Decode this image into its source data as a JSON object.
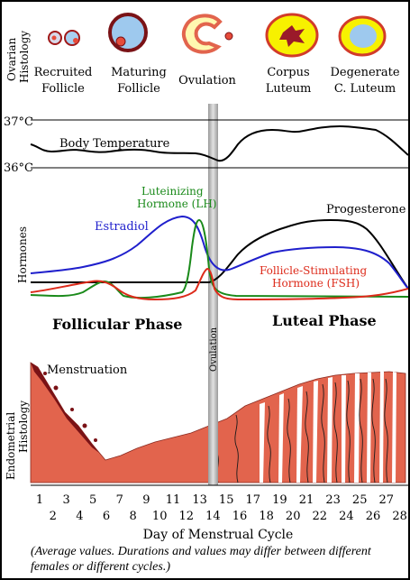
{
  "colors": {
    "estradiol": "#1f1fcc",
    "lh": "#1a8a1a",
    "fsh": "#dd2a1a",
    "progesterone": "#000000",
    "endometrium": "#e2644d",
    "menstrual_blood": "#7a1216",
    "follicle_fluid": "#9ec9ee",
    "corpus_yellow": "#f7f100"
  },
  "ovarian": {
    "side_label_1": "Ovarian",
    "side_label_2": "Histology",
    "stages": [
      {
        "line1": "Recruited",
        "line2": "Follicle"
      },
      {
        "line1": "Maturing",
        "line2": "Follicle"
      },
      {
        "line1": "Ovulation",
        "line2": ""
      },
      {
        "line1": "Corpus",
        "line2": "Luteum"
      },
      {
        "line1": "Degenerate",
        "line2": "C. Luteum"
      }
    ]
  },
  "temperature": {
    "label": "Body Temperature",
    "high_label": "37°C",
    "low_label": "36°C"
  },
  "hormones": {
    "side_label": "Hormones",
    "lh_label_1": "Luteinizing",
    "lh_label_2": "Hormone (LH)",
    "estradiol_label": "Estradiol",
    "progesterone_label": "Progesterone",
    "fsh_label_1": "Follicle-Stimulating",
    "fsh_label_2": "Hormone (FSH)"
  },
  "phases": {
    "follicular": "Follicular Phase",
    "luteal": "Luteal Phase",
    "ovulation": "Ovulation"
  },
  "endometrium": {
    "side_label_1": "Endometrial",
    "side_label_2": "Histology",
    "menstruation_label": "Menstruation"
  },
  "axis": {
    "title": "Day of Menstrual Cycle",
    "odd_days": [
      "1",
      "3",
      "5",
      "7",
      "9",
      "11",
      "13",
      "15",
      "17",
      "19",
      "21",
      "23",
      "25",
      "27"
    ],
    "even_days": [
      "2",
      "4",
      "6",
      "8",
      "10",
      "12",
      "14",
      "16",
      "18",
      "20",
      "22",
      "24",
      "26",
      "28"
    ]
  },
  "caption": "(Average values. Durations and values may differ between different females or different cycles.)"
}
